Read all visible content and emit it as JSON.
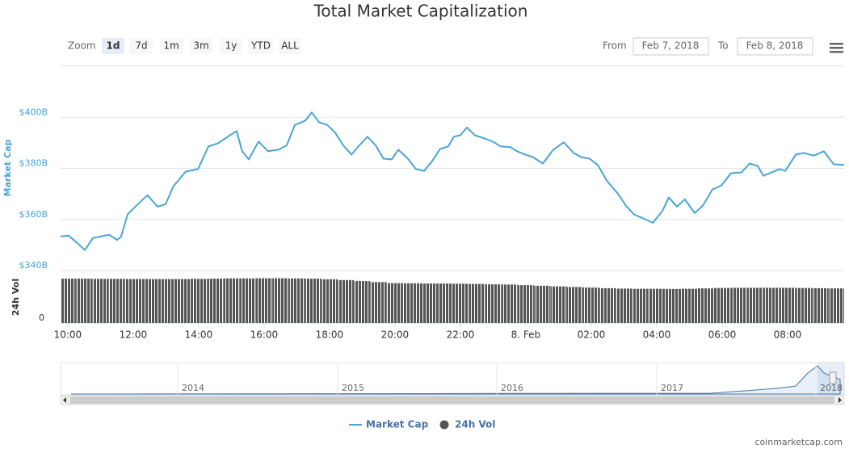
{
  "header": {
    "title": "Total Market Capitalization"
  },
  "toolbar": {
    "zoom_label": "Zoom",
    "zoom_buttons": [
      "1d",
      "7d",
      "1m",
      "3m",
      "1y",
      "YTD",
      "ALL"
    ],
    "from_label": "From",
    "from": "Feb 7, 2018",
    "to_label": "To",
    "to": "Feb 8, 2018"
  },
  "chart_data": [
    {
      "type": "line",
      "y_label": "Market Cap",
      "xlim": [
        9.78,
        33.73
      ],
      "xticks": [
        {
          "value": 10,
          "label": "10:00"
        },
        {
          "value": 12,
          "label": "12:00"
        },
        {
          "value": 14,
          "label": "14:00"
        },
        {
          "value": 16,
          "label": "16:00"
        },
        {
          "value": 18,
          "label": "18:00"
        },
        {
          "value": 20,
          "label": "20:00"
        },
        {
          "value": 22,
          "label": "22:00"
        },
        {
          "value": 24,
          "label": "8. Feb"
        },
        {
          "value": 26,
          "label": "02:00"
        },
        {
          "value": 28,
          "label": "04:00"
        },
        {
          "value": 30,
          "label": "06:00"
        },
        {
          "value": 32,
          "label": "08:00"
        }
      ],
      "ylim": [
        340,
        420
      ],
      "yticks": [
        {
          "value": 340,
          "label": "$340B"
        },
        {
          "value": 360,
          "label": "$360B"
        },
        {
          "value": 380,
          "label": "$380B"
        },
        {
          "value": 400,
          "label": "$400B"
        }
      ],
      "grid": true,
      "series": [
        {
          "name": "Market Cap",
          "color": "#4aa4d6",
          "x": [
            9.78,
            10.02,
            10.27,
            10.52,
            10.77,
            11.01,
            11.26,
            11.51,
            11.63,
            11.83,
            12.12,
            12.44,
            12.74,
            12.99,
            13.23,
            13.6,
            13.98,
            14.3,
            14.59,
            14.96,
            15.16,
            15.33,
            15.53,
            15.83,
            16.12,
            16.44,
            16.69,
            16.94,
            17.26,
            17.46,
            17.68,
            17.93,
            18.17,
            18.42,
            18.67,
            18.91,
            19.16,
            19.41,
            19.65,
            19.9,
            20.1,
            20.4,
            20.64,
            20.89,
            21.14,
            21.38,
            21.63,
            21.8,
            22.0,
            22.2,
            22.44,
            22.74,
            22.99,
            23.23,
            23.53,
            23.73,
            23.98,
            24.22,
            24.52,
            24.84,
            25.16,
            25.46,
            25.7,
            25.95,
            26.2,
            26.49,
            26.81,
            27.06,
            27.31,
            27.56,
            27.88,
            28.17,
            28.37,
            28.62,
            28.86,
            29.16,
            29.41,
            29.7,
            29.98,
            30.27,
            30.59,
            30.84,
            31.09,
            31.26,
            31.51,
            31.75,
            31.93,
            32.25,
            32.49,
            32.81,
            33.11,
            33.41,
            33.73
          ],
          "values": [
            353.3,
            353.7,
            351,
            348,
            352.7,
            353.3,
            354,
            352,
            353.3,
            362,
            365.7,
            369.5,
            365,
            366,
            373,
            378.7,
            379.7,
            388.6,
            389.8,
            393,
            394.6,
            386.7,
            383.5,
            390.5,
            386.7,
            387.3,
            389,
            397,
            398.7,
            401.9,
            398,
            397,
            394,
            389,
            385.4,
            389,
            392.4,
            389,
            383.8,
            383.5,
            387.3,
            383.8,
            379.7,
            379,
            382.9,
            387.6,
            388.6,
            392.4,
            393,
            396,
            393,
            391.7,
            390.5,
            388.6,
            388.3,
            386.7,
            385.4,
            384.4,
            381.9,
            387.3,
            390.2,
            386,
            384.4,
            383.8,
            381.3,
            374.9,
            370.2,
            365.4,
            361.9,
            360.6,
            358.7,
            363.2,
            368.6,
            365,
            367.9,
            362.5,
            365.4,
            371.7,
            373.3,
            378.1,
            378.4,
            381.9,
            380.9,
            377.1,
            378.4,
            379.7,
            379,
            385.4,
            386,
            385,
            386.7,
            381.6,
            381.3
          ]
        }
      ]
    },
    {
      "type": "bar",
      "y_label": "24h Vol",
      "ylim": [
        0,
        25
      ],
      "yticks": [
        0
      ],
      "series": [
        {
          "name": "24h Vol",
          "color": "#555555",
          "x": [
            10,
            10.5,
            11,
            11.5,
            12,
            12.5,
            13,
            13.5,
            14,
            14.5,
            15,
            15.5,
            16,
            16.5,
            17,
            17.5,
            18,
            18.5,
            19,
            19.5,
            20,
            20.5,
            21,
            21.5,
            22,
            22.5,
            23,
            23.5,
            24,
            24.5,
            25,
            25.5,
            26,
            26.5,
            27,
            27.5,
            28,
            28.5,
            29,
            29.5,
            30,
            30.5,
            31,
            31.5,
            32,
            32.5,
            33,
            33.5
          ],
          "values": [
            21.8,
            21.8,
            21.7,
            21.7,
            21.6,
            21.6,
            21.6,
            21.6,
            21.7,
            21.8,
            21.9,
            21.9,
            22,
            22,
            21.9,
            21.8,
            21.5,
            21.1,
            20.6,
            20.1,
            19.6,
            19.5,
            19.4,
            19.4,
            19.3,
            19.2,
            19.0,
            18.9,
            18.6,
            18.3,
            18.0,
            17.7,
            17.4,
            17.1,
            16.9,
            16.8,
            16.8,
            16.7,
            16.8,
            17.0,
            17.2,
            17.3,
            17.3,
            17.3,
            17.3,
            17.2,
            17.1,
            17.0
          ]
        }
      ]
    }
  ],
  "navigator": {
    "labels": [
      "2014",
      "2015",
      "2016",
      "2017",
      "2018"
    ]
  },
  "credit": "coinmarketcap.com"
}
